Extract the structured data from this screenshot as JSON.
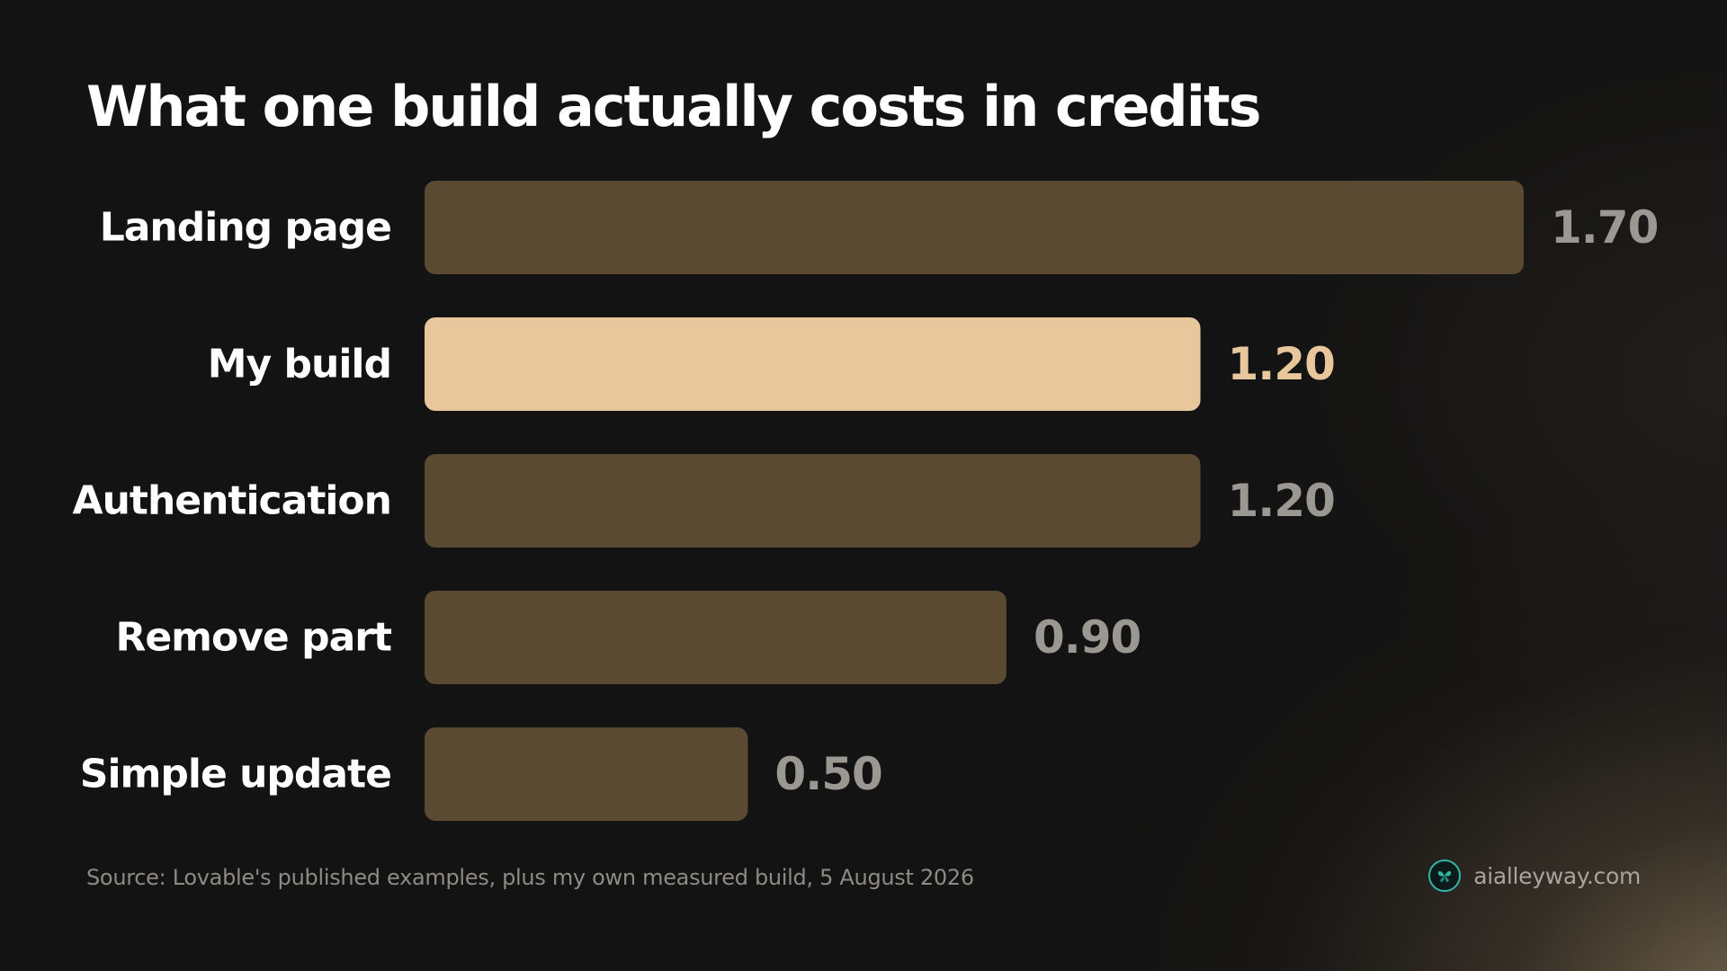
{
  "chart_data": {
    "type": "bar",
    "orientation": "horizontal",
    "title": "What one build actually costs in credits",
    "categories": [
      "Landing page",
      "My build",
      "Authentication",
      "Remove part",
      "Simple update"
    ],
    "values": [
      1.7,
      1.2,
      1.2,
      0.9,
      0.5
    ],
    "value_labels": [
      "1.70",
      "1.20",
      "1.20",
      "0.90",
      "0.50"
    ],
    "highlight": "My build",
    "xlim": [
      0,
      1.7
    ],
    "grid": false,
    "colors": {
      "bar": "#5a4a32",
      "bar_highlight": "#e8c79c",
      "value_text": "#9b9792",
      "value_text_highlight": "#e8c79c",
      "category_text": "#ffffff"
    }
  },
  "footer": {
    "source": "Source: Lovable's published examples, plus my own measured build, 5 August 2026",
    "brand": "aialleyway.com",
    "brand_icon": "butterfly-logo-icon"
  }
}
